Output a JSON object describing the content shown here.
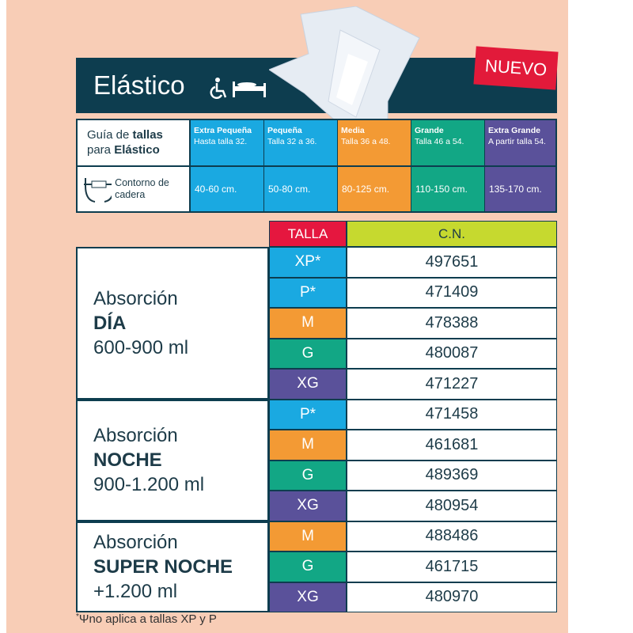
{
  "header": {
    "title": "Elástico",
    "badge": "NUEVO"
  },
  "guide": {
    "label_normal_1": "Guía de ",
    "label_bold_1": "tallas",
    "label_normal_2": "para ",
    "label_bold_2": "Elástico",
    "hip_label": "Contorno de cadera",
    "sizes": [
      {
        "name": "Extra Pequeña",
        "desc": "Hasta talla 32.",
        "hip": "40-60 cm.",
        "color": "#1AA9E1"
      },
      {
        "name": "Pequeña",
        "desc": "Talla 32 a 36.",
        "hip": "50-80 cm.",
        "color": "#1AA9E1"
      },
      {
        "name": "Media",
        "desc": "Talla 36 a 48.",
        "hip": "80-125 cm.",
        "color": "#F39A34"
      },
      {
        "name": "Grande",
        "desc": "Talla 46 a 54.",
        "hip": "110-150 cm.",
        "color": "#12A785"
      },
      {
        "name": "Extra Grande",
        "desc": "A partir talla 54.",
        "hip": "135-170 cm.",
        "color": "#5A519A"
      }
    ]
  },
  "table": {
    "col_talla": "TALLA",
    "col_cn": "C.N.",
    "groups": [
      {
        "line1": "Absorción",
        "line2": "DÍA",
        "line3": "600-900 ml",
        "rows": [
          {
            "size": "XP*",
            "cn": "497651"
          },
          {
            "size": "P*",
            "cn": "471409"
          },
          {
            "size": "M",
            "cn": "478388"
          },
          {
            "size": "G",
            "cn": "480087"
          },
          {
            "size": "XG",
            "cn": "471227"
          }
        ]
      },
      {
        "line1": "Absorción",
        "line2": "NOCHE",
        "line3": "900-1.200 ml",
        "rows": [
          {
            "size": "P*",
            "cn": "471458"
          },
          {
            "size": "M",
            "cn": "461681"
          },
          {
            "size": "G",
            "cn": "489369"
          },
          {
            "size": "XG",
            "cn": "480954"
          }
        ]
      },
      {
        "line1": "Absorción",
        "line2": "SUPER NOCHE",
        "line3": "+1.200 ml",
        "rows": [
          {
            "size": "M",
            "cn": "488486"
          },
          {
            "size": "G",
            "cn": "461715"
          },
          {
            "size": "XG",
            "cn": "480970"
          }
        ]
      }
    ]
  },
  "footnote": {
    "mark": "*",
    "text": "no aplica a tallas XP y P"
  }
}
